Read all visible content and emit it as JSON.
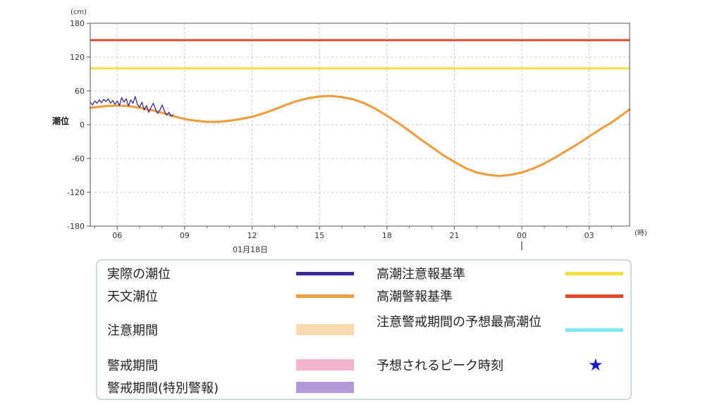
{
  "chart_data": {
    "type": "line",
    "y_unit": "(cm)",
    "x_unit": "(時)",
    "ylabel": "潮位",
    "date_label": "01月18日",
    "ylim": [
      -180,
      180
    ],
    "yticks": [
      180,
      120,
      60,
      0,
      -60,
      -120,
      -180
    ],
    "xlim": [
      4.8,
      28.8
    ],
    "xticks": [
      {
        "hour": 6,
        "label": "06"
      },
      {
        "hour": 9,
        "label": "09"
      },
      {
        "hour": 12,
        "label": "12"
      },
      {
        "hour": 15,
        "label": "15"
      },
      {
        "hour": 18,
        "label": "18"
      },
      {
        "hour": 21,
        "label": "21"
      },
      {
        "hour": 24,
        "label": "00"
      },
      {
        "hour": 27,
        "label": "03"
      }
    ],
    "grid": true,
    "thresholds": [
      {
        "name": "高潮注意報基準",
        "value": 100,
        "color": "#f0e040"
      },
      {
        "name": "高潮警報基準",
        "value": 150,
        "color": "#e04a2a"
      }
    ],
    "series": [
      {
        "name": "天文潮位",
        "color": "#eda040",
        "x": [
          4.8,
          5.5,
          6.0,
          6.5,
          7.0,
          7.5,
          8.0,
          8.5,
          9.0,
          9.5,
          10.0,
          10.5,
          11.0,
          11.5,
          12.0,
          12.5,
          13.0,
          13.5,
          14.0,
          14.5,
          15.0,
          15.5,
          16.0,
          16.5,
          17.0,
          17.5,
          18.0,
          18.5,
          19.0,
          19.5,
          20.0,
          20.5,
          21.0,
          21.5,
          22.0,
          22.5,
          23.0,
          23.5,
          24.0,
          24.5,
          25.0,
          25.5,
          26.0,
          26.5,
          27.0,
          27.5,
          28.0,
          28.8
        ],
        "values": [
          30,
          33,
          34,
          33,
          30,
          26,
          21,
          15,
          10,
          7,
          5,
          5,
          7,
          10,
          14,
          20,
          27,
          35,
          42,
          47,
          50,
          51,
          49,
          45,
          38,
          28,
          16,
          3,
          -11,
          -26,
          -40,
          -54,
          -66,
          -77,
          -85,
          -89,
          -91,
          -89,
          -85,
          -78,
          -69,
          -58,
          -46,
          -34,
          -21,
          -8,
          4,
          27
        ]
      },
      {
        "name": "実際の潮位",
        "color": "#3a2a9a",
        "x": [
          4.8,
          4.9,
          5.0,
          5.1,
          5.2,
          5.3,
          5.4,
          5.5,
          5.6,
          5.7,
          5.8,
          5.9,
          6.0,
          6.1,
          6.2,
          6.3,
          6.4,
          6.5,
          6.6,
          6.7,
          6.8,
          6.9,
          7.0,
          7.1,
          7.2,
          7.3,
          7.4,
          7.5,
          7.6,
          7.7,
          7.8,
          7.9,
          8.0,
          8.1,
          8.2,
          8.3,
          8.4,
          8.5
        ],
        "values": [
          40,
          35,
          42,
          38,
          44,
          39,
          45,
          41,
          46,
          38,
          43,
          36,
          42,
          34,
          48,
          40,
          46,
          33,
          44,
          38,
          50,
          36,
          31,
          40,
          26,
          34,
          22,
          30,
          38,
          28,
          20,
          26,
          35,
          24,
          17,
          22,
          15,
          18
        ]
      }
    ]
  },
  "legend": {
    "items": [
      {
        "label": "実際の潮位",
        "color": "#3a2a9a",
        "kind": "line"
      },
      {
        "label": "天文潮位",
        "color": "#eda040",
        "kind": "line"
      },
      {
        "label": "注意期間",
        "color": "#f7dab2",
        "kind": "band"
      },
      {
        "label": "警戒期間",
        "color": "#f4b4cc",
        "kind": "band"
      },
      {
        "label": "警戒期間(特別警報)",
        "color": "#b09ad8",
        "kind": "band"
      },
      {
        "label": "高潮注意報基準",
        "color": "#f0e040",
        "kind": "line"
      },
      {
        "label": "高潮警報基準",
        "color": "#e04a2a",
        "kind": "line"
      },
      {
        "label": "注意警戒期間の予想最高潮位",
        "color": "#7fe8f4",
        "kind": "line"
      },
      {
        "label": "予想されるピーク時刻",
        "color": "#1a1ad0",
        "kind": "star",
        "icon": "star-icon"
      }
    ]
  }
}
